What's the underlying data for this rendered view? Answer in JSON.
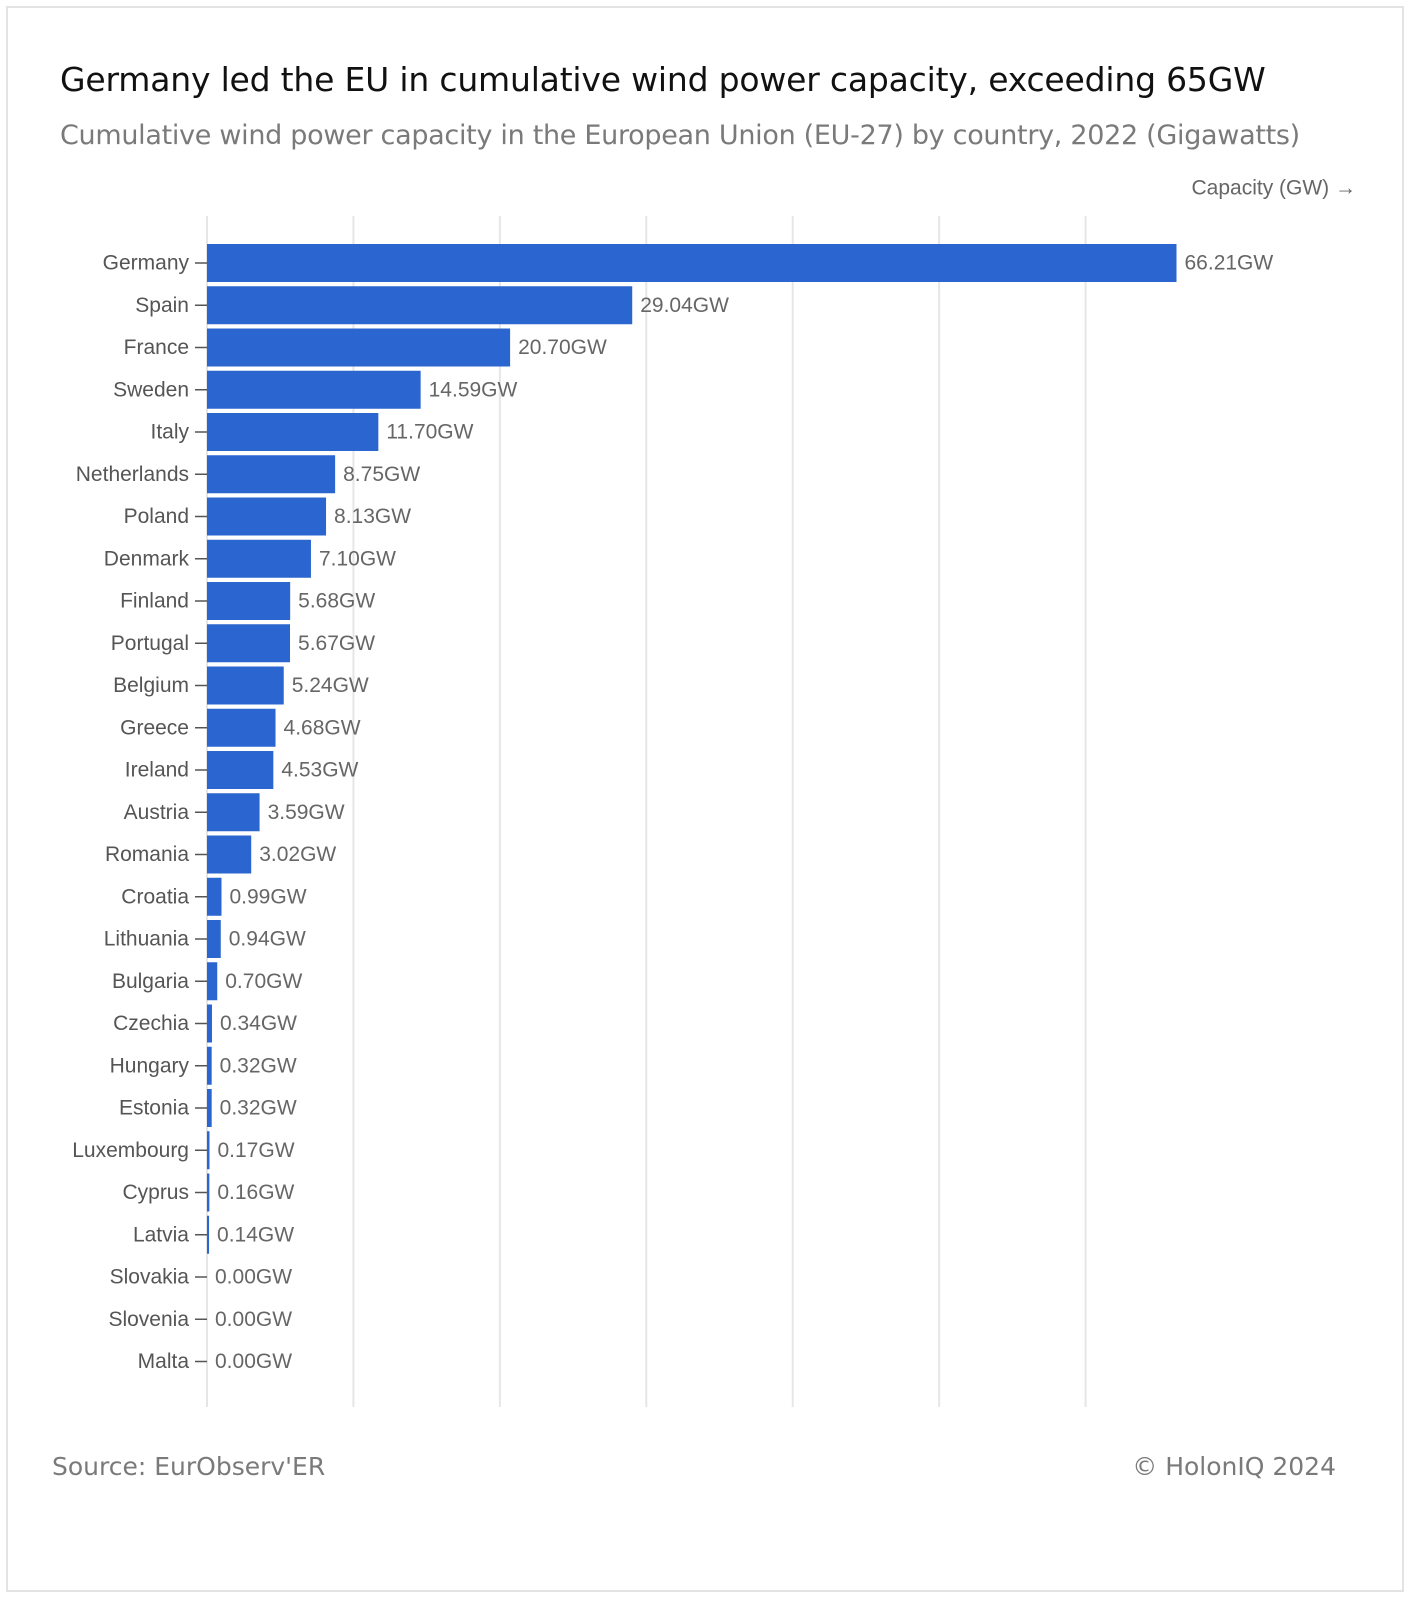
{
  "header": {
    "title": "Germany led the EU in cumulative wind power capacity, exceeding 65GW",
    "subtitle": "Cumulative wind power capacity in the European Union (EU-27) by country, 2022 (Gigawatts)"
  },
  "footer": {
    "source": "Source: EurObserv'ER",
    "copyright": "© HolonIQ 2024"
  },
  "colors": {
    "bar": "#2b65cf",
    "grid": "#e6e6e6"
  },
  "chart_data": {
    "type": "bar",
    "orientation": "horizontal",
    "xlabel": "Capacity (GW) →",
    "xlim": [
      0,
      70
    ],
    "grid": true,
    "value_suffix": "GW",
    "categories": [
      "Germany",
      "Spain",
      "France",
      "Sweden",
      "Italy",
      "Netherlands",
      "Poland",
      "Denmark",
      "Finland",
      "Portugal",
      "Belgium",
      "Greece",
      "Ireland",
      "Austria",
      "Romania",
      "Croatia",
      "Lithuania",
      "Bulgaria",
      "Czechia",
      "Hungary",
      "Estonia",
      "Luxembourg",
      "Cyprus",
      "Latvia",
      "Slovakia",
      "Slovenia",
      "Malta"
    ],
    "values": [
      66.21,
      29.04,
      20.7,
      14.59,
      11.7,
      8.75,
      8.13,
      7.1,
      5.68,
      5.67,
      5.24,
      4.68,
      4.53,
      3.59,
      3.02,
      0.99,
      0.94,
      0.7,
      0.34,
      0.32,
      0.32,
      0.17,
      0.16,
      0.14,
      0.0,
      0.0,
      0.0
    ],
    "value_labels": [
      "66.21GW",
      "29.04GW",
      "20.70GW",
      "14.59GW",
      "11.70GW",
      "8.75GW",
      "8.13GW",
      "7.10GW",
      "5.68GW",
      "5.67GW",
      "5.24GW",
      "4.68GW",
      "4.53GW",
      "3.59GW",
      "3.02GW",
      "0.99GW",
      "0.94GW",
      "0.70GW",
      "0.34GW",
      "0.32GW",
      "0.32GW",
      "0.17GW",
      "0.16GW",
      "0.14GW",
      "0.00GW",
      "0.00GW",
      "0.00GW"
    ]
  }
}
